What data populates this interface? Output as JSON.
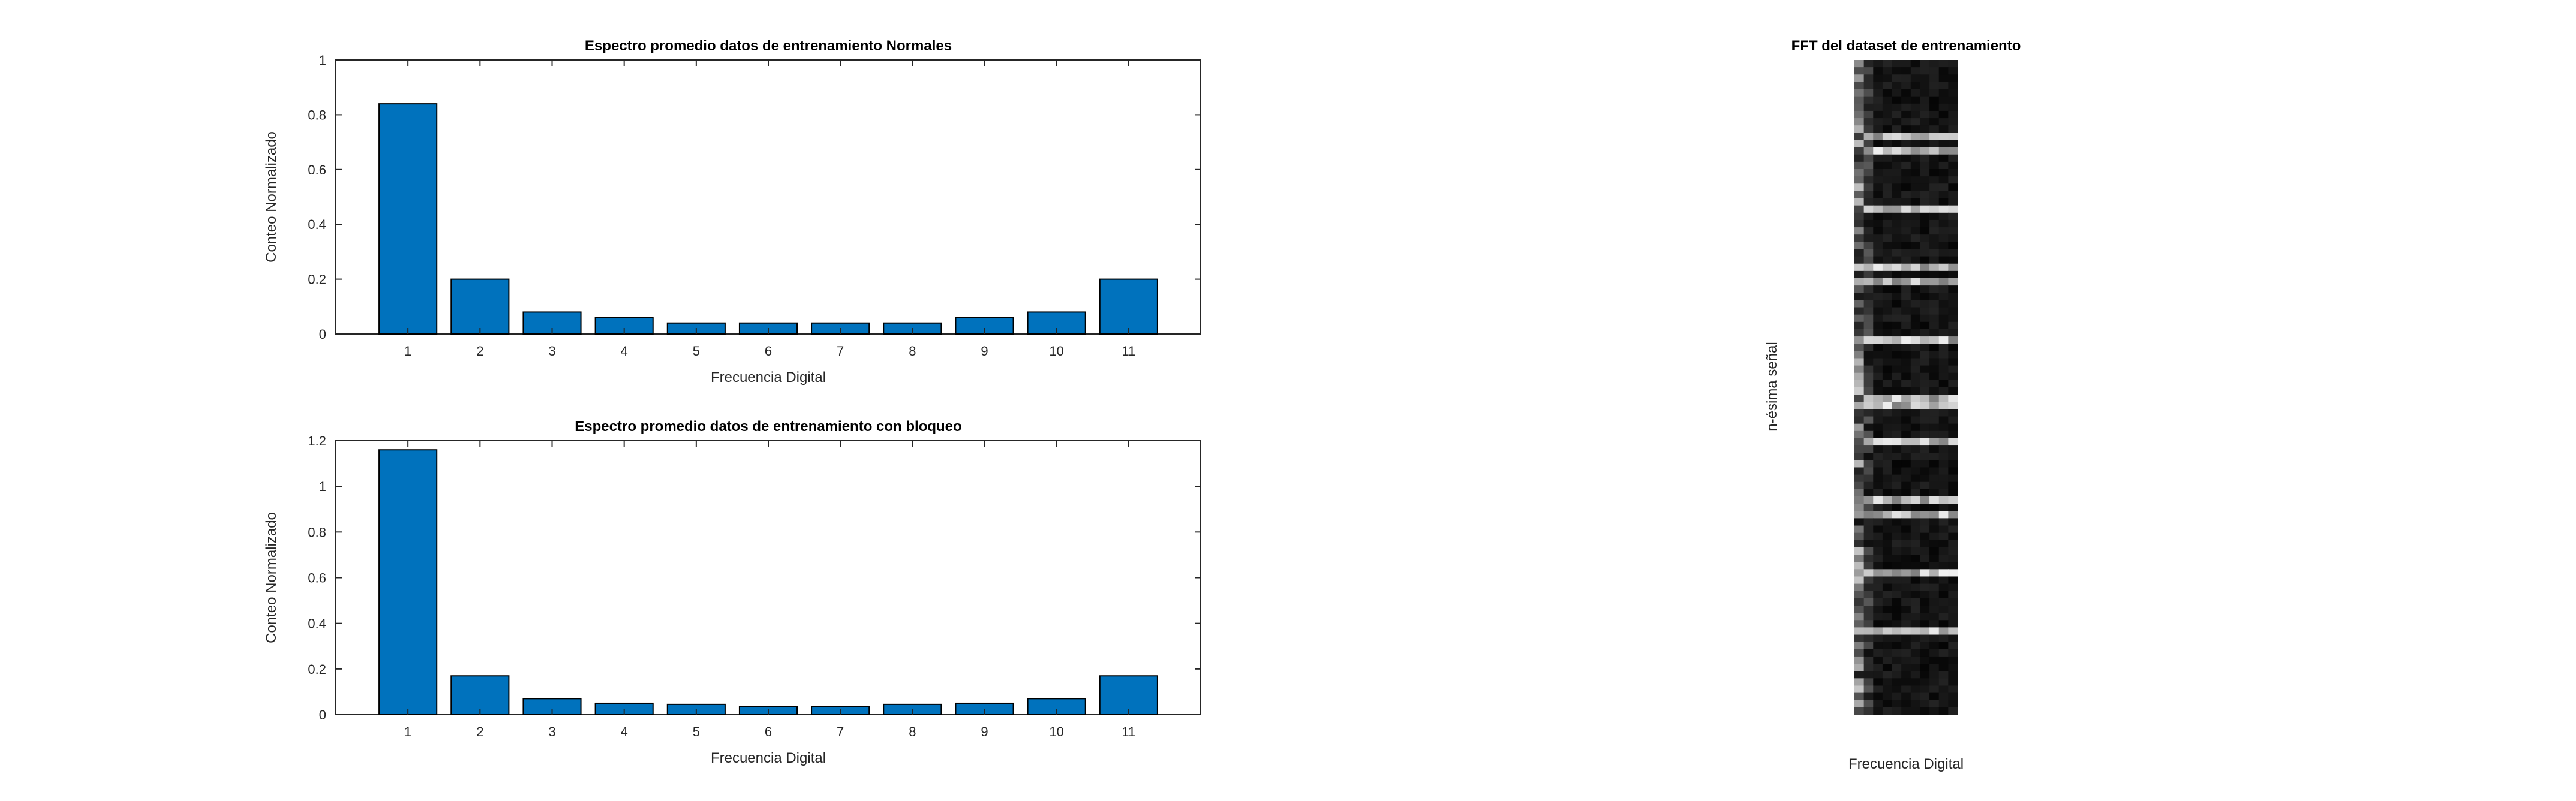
{
  "chart_data": [
    {
      "type": "bar",
      "title": "Espectro promedio datos de entrenamiento Normales",
      "xlabel": "Frecuencia Digital",
      "ylabel": "Conteo Normalizado",
      "categories": [
        "1",
        "2",
        "3",
        "4",
        "5",
        "6",
        "7",
        "8",
        "9",
        "10",
        "11"
      ],
      "values": [
        0.84,
        0.2,
        0.08,
        0.06,
        0.04,
        0.04,
        0.04,
        0.04,
        0.06,
        0.08,
        0.2
      ],
      "ylim": [
        0,
        1
      ],
      "yticks": [
        "0",
        "0.2",
        "0.4",
        "0.6",
        "0.8",
        "1"
      ],
      "color": "#0072BD",
      "grid": false
    },
    {
      "type": "bar",
      "title": "Espectro promedio datos de entrenamiento con bloqueo",
      "xlabel": "Frecuencia Digital",
      "ylabel": "Conteo Normalizado",
      "categories": [
        "1",
        "2",
        "3",
        "4",
        "5",
        "6",
        "7",
        "8",
        "9",
        "10",
        "11"
      ],
      "values": [
        1.16,
        0.17,
        0.07,
        0.05,
        0.045,
        0.035,
        0.035,
        0.045,
        0.05,
        0.07,
        0.17
      ],
      "ylim": [
        0,
        1.2
      ],
      "yticks": [
        "0",
        "0.2",
        "0.4",
        "0.6",
        "0.8",
        "1",
        "1.2"
      ],
      "color": "#0072BD",
      "grid": false
    },
    {
      "type": "heatmap",
      "title": "FFT del dataset de entrenamiento",
      "xlabel": "Frecuencia Digital",
      "ylabel": "n-ésima señal",
      "colormap": "gray",
      "rows": 90,
      "cols": 11
    }
  ]
}
